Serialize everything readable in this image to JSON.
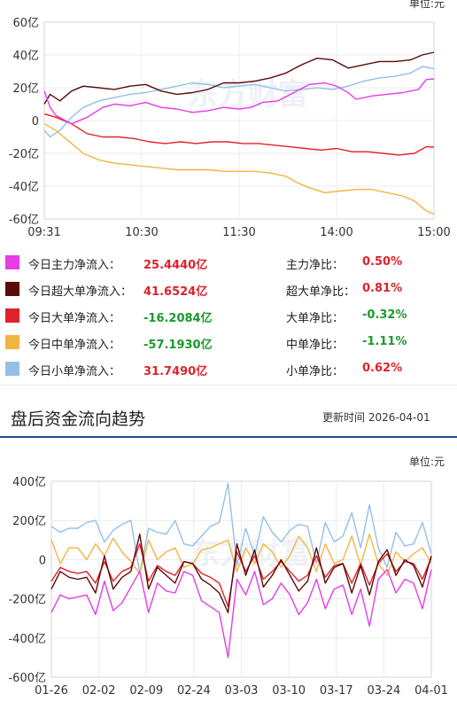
{
  "charts": [
    {
      "unit_label": "单位:元",
      "chart_data": {
        "type": "line",
        "title": "",
        "x_ticks": [
          "09:31",
          "10:30",
          "11:30",
          "14:00",
          "15:00"
        ],
        "y_ticks": [
          "60亿",
          "40亿",
          "20亿",
          "0",
          "-20亿",
          "-40亿",
          "-60亿"
        ],
        "ylim": [
          -60,
          60
        ],
        "grid": true,
        "watermark": "东方财富",
        "series": [
          {
            "key": "main",
            "color": "#e63ce6",
            "points": [
              [
                0,
                18
              ],
              [
                0.015,
                8
              ],
              [
                0.03,
                3
              ],
              [
                0.07,
                -2
              ],
              [
                0.11,
                2
              ],
              [
                0.15,
                8
              ],
              [
                0.18,
                10
              ],
              [
                0.22,
                9
              ],
              [
                0.26,
                11
              ],
              [
                0.3,
                8
              ],
              [
                0.34,
                7
              ],
              [
                0.38,
                5
              ],
              [
                0.42,
                6
              ],
              [
                0.46,
                8
              ],
              [
                0.5,
                7
              ],
              [
                0.53,
                8
              ],
              [
                0.56,
                11
              ],
              [
                0.6,
                12
              ],
              [
                0.64,
                17
              ],
              [
                0.68,
                22
              ],
              [
                0.72,
                23
              ],
              [
                0.75,
                21
              ],
              [
                0.78,
                17
              ],
              [
                0.8,
                13
              ],
              [
                0.84,
                15
              ],
              [
                0.88,
                16
              ],
              [
                0.92,
                17
              ],
              [
                0.96,
                19
              ],
              [
                0.98,
                25
              ],
              [
                1,
                25.4
              ]
            ]
          },
          {
            "key": "super",
            "color": "#5c0a0a",
            "points": [
              [
                0,
                10
              ],
              [
                0.015,
                16
              ],
              [
                0.04,
                12
              ],
              [
                0.07,
                18
              ],
              [
                0.1,
                21
              ],
              [
                0.14,
                20
              ],
              [
                0.18,
                19
              ],
              [
                0.22,
                21
              ],
              [
                0.26,
                22
              ],
              [
                0.3,
                18
              ],
              [
                0.34,
                16
              ],
              [
                0.38,
                17
              ],
              [
                0.42,
                19
              ],
              [
                0.46,
                23
              ],
              [
                0.5,
                23
              ],
              [
                0.54,
                24
              ],
              [
                0.58,
                26
              ],
              [
                0.62,
                29
              ],
              [
                0.66,
                34
              ],
              [
                0.7,
                38
              ],
              [
                0.74,
                37
              ],
              [
                0.78,
                32
              ],
              [
                0.82,
                34
              ],
              [
                0.86,
                36
              ],
              [
                0.9,
                36
              ],
              [
                0.94,
                37
              ],
              [
                0.97,
                40
              ],
              [
                1,
                41.6
              ]
            ]
          },
          {
            "key": "large",
            "color": "#e0222b",
            "points": [
              [
                0,
                4
              ],
              [
                0.03,
                2
              ],
              [
                0.07,
                -2
              ],
              [
                0.11,
                -8
              ],
              [
                0.15,
                -10
              ],
              [
                0.19,
                -10
              ],
              [
                0.23,
                -11
              ],
              [
                0.27,
                -13
              ],
              [
                0.31,
                -14
              ],
              [
                0.35,
                -13
              ],
              [
                0.39,
                -14
              ],
              [
                0.43,
                -13
              ],
              [
                0.47,
                -13
              ],
              [
                0.51,
                -14
              ],
              [
                0.55,
                -14
              ],
              [
                0.59,
                -15
              ],
              [
                0.63,
                -16
              ],
              [
                0.67,
                -17
              ],
              [
                0.71,
                -18
              ],
              [
                0.75,
                -17
              ],
              [
                0.79,
                -19
              ],
              [
                0.83,
                -19
              ],
              [
                0.87,
                -20
              ],
              [
                0.91,
                -21
              ],
              [
                0.95,
                -20
              ],
              [
                0.98,
                -16
              ],
              [
                1,
                -16.2
              ]
            ]
          },
          {
            "key": "medium",
            "color": "#f2b541",
            "points": [
              [
                0,
                -2
              ],
              [
                0.03,
                -6
              ],
              [
                0.06,
                -12
              ],
              [
                0.1,
                -20
              ],
              [
                0.14,
                -24
              ],
              [
                0.18,
                -26
              ],
              [
                0.22,
                -27
              ],
              [
                0.26,
                -28
              ],
              [
                0.3,
                -29
              ],
              [
                0.34,
                -30
              ],
              [
                0.38,
                -30
              ],
              [
                0.42,
                -30
              ],
              [
                0.46,
                -31
              ],
              [
                0.5,
                -31
              ],
              [
                0.54,
                -31
              ],
              [
                0.58,
                -32
              ],
              [
                0.62,
                -34
              ],
              [
                0.65,
                -38
              ],
              [
                0.68,
                -41
              ],
              [
                0.72,
                -44
              ],
              [
                0.76,
                -43
              ],
              [
                0.8,
                -42
              ],
              [
                0.84,
                -42
              ],
              [
                0.88,
                -44
              ],
              [
                0.92,
                -46
              ],
              [
                0.95,
                -49
              ],
              [
                0.98,
                -55
              ],
              [
                1,
                -57.2
              ]
            ]
          },
          {
            "key": "small",
            "color": "#93c0e8",
            "points": [
              [
                0,
                -6
              ],
              [
                0.015,
                -10
              ],
              [
                0.04,
                -6
              ],
              [
                0.07,
                2
              ],
              [
                0.1,
                8
              ],
              [
                0.14,
                12
              ],
              [
                0.18,
                14
              ],
              [
                0.22,
                16
              ],
              [
                0.26,
                17
              ],
              [
                0.3,
                19
              ],
              [
                0.34,
                21
              ],
              [
                0.38,
                23
              ],
              [
                0.42,
                22
              ],
              [
                0.46,
                20
              ],
              [
                0.5,
                21
              ],
              [
                0.54,
                22
              ],
              [
                0.58,
                20
              ],
              [
                0.62,
                18
              ],
              [
                0.66,
                19
              ],
              [
                0.7,
                20
              ],
              [
                0.74,
                19
              ],
              [
                0.78,
                21
              ],
              [
                0.82,
                24
              ],
              [
                0.86,
                26
              ],
              [
                0.9,
                27
              ],
              [
                0.94,
                29
              ],
              [
                0.97,
                33
              ],
              [
                1,
                31.7
              ]
            ]
          }
        ]
      }
    },
    {
      "unit_label": "单位:元",
      "chart_data": {
        "type": "line",
        "title": "",
        "x_ticks": [
          "01-26",
          "02-02",
          "02-09",
          "02-24",
          "03-03",
          "03-10",
          "03-17",
          "03-24",
          "04-01"
        ],
        "y_ticks": [
          "400亿",
          "200亿",
          "0",
          "-200亿",
          "-400亿",
          "-600亿"
        ],
        "ylim": [
          -600,
          400
        ],
        "grid": true,
        "watermark": "东方财富",
        "series": [
          {
            "key": "main",
            "color": "#e63ce6",
            "values": [
              -270,
              -180,
              -200,
              -190,
              -180,
              -280,
              -110,
              -260,
              -220,
              -140,
              -60,
              -270,
              -120,
              -160,
              -170,
              -60,
              -80,
              -210,
              -240,
              -270,
              -500,
              -100,
              -180,
              -60,
              -230,
              -200,
              -120,
              -180,
              -280,
              -220,
              -100,
              -250,
              -150,
              -130,
              -280,
              -150,
              -340,
              -100,
              -50,
              -170,
              -100,
              -120,
              -250,
              -50
            ]
          },
          {
            "key": "super",
            "color": "#5c0a0a",
            "values": [
              -150,
              -60,
              -90,
              -100,
              -90,
              -170,
              20,
              -150,
              -90,
              -60,
              130,
              -150,
              -40,
              -80,
              -120,
              -10,
              -20,
              -100,
              -130,
              -170,
              -270,
              80,
              -80,
              50,
              -140,
              -80,
              0,
              -80,
              -160,
              -110,
              60,
              -120,
              -40,
              -20,
              -170,
              -30,
              -180,
              -10,
              50,
              -80,
              0,
              -30,
              -140,
              20
            ]
          },
          {
            "key": "large",
            "color": "#e0222b",
            "values": [
              -110,
              -40,
              -60,
              -70,
              -60,
              -120,
              -10,
              -110,
              -60,
              -40,
              80,
              -110,
              -30,
              -60,
              -80,
              -10,
              -20,
              -70,
              -90,
              -120,
              -240,
              40,
              -60,
              20,
              -100,
              -60,
              -10,
              -60,
              -110,
              -80,
              20,
              -90,
              -30,
              -20,
              -120,
              -20,
              -130,
              -20,
              30,
              -60,
              -10,
              -20,
              -100,
              10
            ]
          },
          {
            "key": "medium",
            "color": "#f2b541",
            "values": [
              100,
              -20,
              60,
              60,
              0,
              80,
              20,
              110,
              40,
              -10,
              -70,
              100,
              0,
              40,
              60,
              -40,
              -20,
              50,
              60,
              80,
              100,
              -60,
              60,
              -20,
              80,
              40,
              -40,
              20,
              120,
              60,
              -60,
              80,
              -20,
              0,
              120,
              -30,
              130,
              -20,
              -80,
              40,
              -10,
              30,
              60,
              -20
            ]
          },
          {
            "key": "small",
            "color": "#93c0e8",
            "values": [
              170,
              140,
              160,
              160,
              190,
              200,
              90,
              150,
              180,
              200,
              -70,
              160,
              140,
              130,
              200,
              80,
              70,
              120,
              170,
              190,
              390,
              -30,
              160,
              20,
              220,
              140,
              90,
              150,
              180,
              170,
              -20,
              190,
              90,
              120,
              240,
              60,
              280,
              60,
              -40,
              140,
              70,
              80,
              190,
              30
            ]
          }
        ]
      }
    }
  ],
  "legend": [
    {
      "key": "main",
      "color": "#e63ce6",
      "label": "今日主力净流入：",
      "value": "25.4440亿",
      "value_color": "red",
      "ratio_label": "主力净比：",
      "ratio": "0.50%",
      "ratio_color": "red"
    },
    {
      "key": "super",
      "color": "#5c0a0a",
      "label": "今日超大单净流入：",
      "value": "41.6524亿",
      "value_color": "red",
      "ratio_label": "超大单净比：",
      "ratio": "0.81%",
      "ratio_color": "red"
    },
    {
      "key": "large",
      "color": "#e0222b",
      "label": "今日大单净流入：",
      "value": "-16.2084亿",
      "value_color": "green",
      "ratio_label": "大单净比：",
      "ratio": "-0.32%",
      "ratio_color": "green"
    },
    {
      "key": "medium",
      "color": "#f2b541",
      "label": "今日中单净流入：",
      "value": "-57.1930亿",
      "value_color": "green",
      "ratio_label": "中单净比：",
      "ratio": "-1.11%",
      "ratio_color": "green"
    },
    {
      "key": "small",
      "color": "#93c0e8",
      "label": "今日小单净流入：",
      "value": "31.7490亿",
      "value_color": "red",
      "ratio_label": "小单净比：",
      "ratio": "0.62%",
      "ratio_color": "red"
    }
  ],
  "section": {
    "title": "盘后资金流向趋势",
    "update_label": "更新时间",
    "update_date": "2026-04-01"
  }
}
